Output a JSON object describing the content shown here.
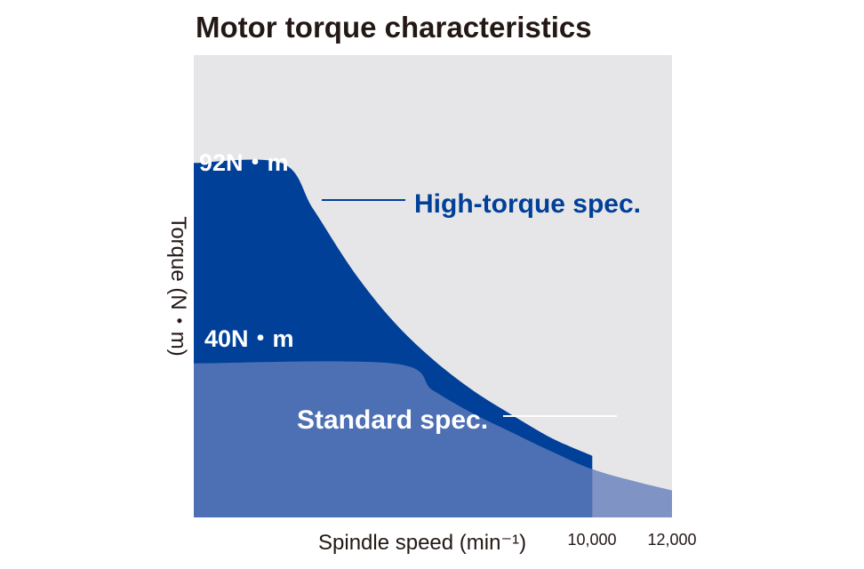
{
  "chart_data": {
    "type": "area",
    "title": "Motor torque characteristics",
    "xlabel": "Spindle speed (min⁻¹)",
    "ylabel": "Torque (N・m)",
    "x_ticks": [
      "10,000",
      "12,000"
    ],
    "series": [
      {
        "name": "High-torque spec.",
        "max_torque_label": "92N・m",
        "color": "#004098",
        "max_speed": 10000,
        "points": [
          [
            0,
            92
          ],
          [
            2200,
            92
          ],
          [
            3000,
            80
          ],
          [
            4000,
            64
          ],
          [
            5000,
            51
          ],
          [
            6000,
            41
          ],
          [
            7000,
            33
          ],
          [
            8000,
            26.5
          ],
          [
            9000,
            20.5
          ],
          [
            10000,
            16
          ]
        ]
      },
      {
        "name": "Standard spec.",
        "max_torque_label": "40N・m",
        "color": "#4d6fb3",
        "max_speed": 12000,
        "points": [
          [
            0,
            40
          ],
          [
            5000,
            40
          ],
          [
            6000,
            33
          ],
          [
            7000,
            27
          ],
          [
            8000,
            22
          ],
          [
            9000,
            17
          ],
          [
            10000,
            12.5
          ],
          [
            11000,
            9.5
          ],
          [
            12000,
            7
          ]
        ]
      }
    ],
    "extended_range_color": "#7f93c4",
    "plot_background": "#e6e6e8",
    "xlim": [
      0,
      12000
    ],
    "ylim": [
      0,
      120
    ],
    "grid": false,
    "legend": "none"
  }
}
